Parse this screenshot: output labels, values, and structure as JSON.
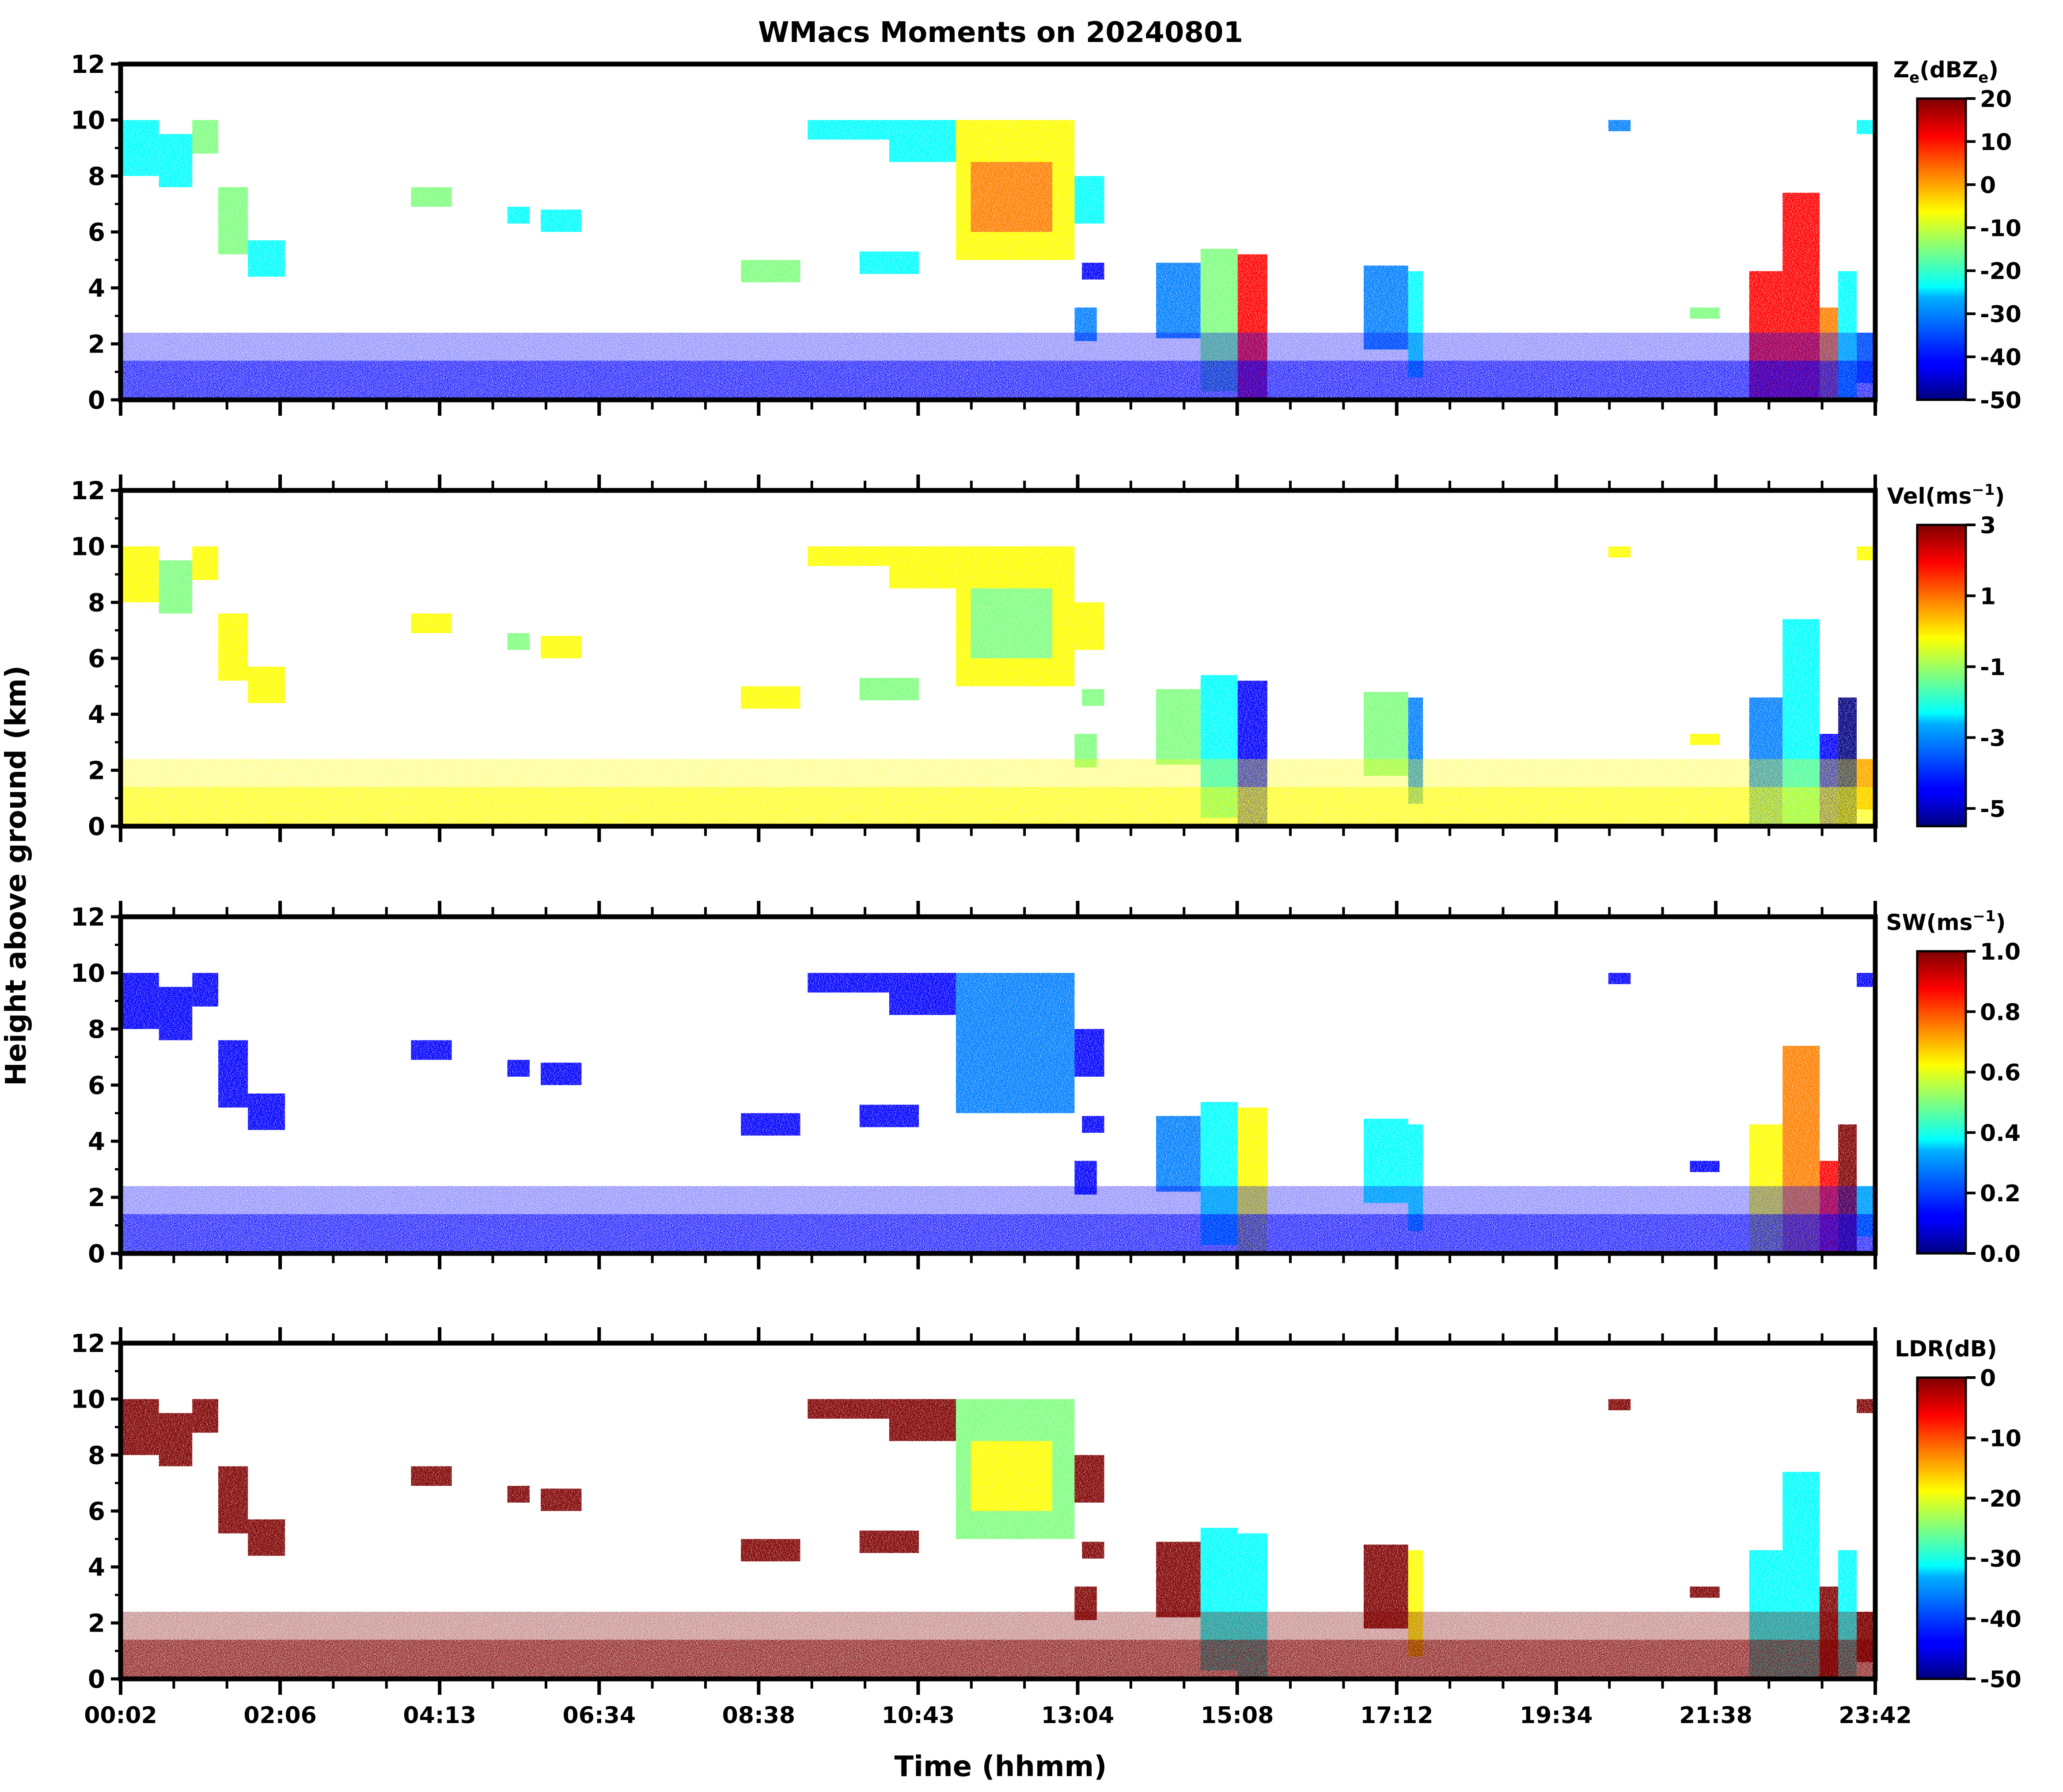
{
  "figure": {
    "title": "WMacs Moments on 20240801",
    "ylabel": "Height above ground (km)",
    "xlabel": "Time (hhmm)"
  },
  "chart_data": [
    {
      "type": "heatmap",
      "title": "WMacs Moments on 20240801",
      "variable": "Ze",
      "cbar_label_base": "Z",
      "cbar_label_sub": "e",
      "cbar_label_mid": "(dBZ",
      "cbar_label_sub2": "e",
      "cbar_label_end": ")",
      "cbar_range": [
        -50,
        20
      ],
      "cbar_ticks": [
        20,
        10,
        0,
        -10,
        -20,
        -30,
        -40,
        -50
      ],
      "cbar_tick_labels": [
        "20",
        "10",
        "0",
        "-10",
        "-20",
        "-30",
        "-40",
        "-50"
      ],
      "ylim": [
        0,
        12
      ],
      "yticks": [
        "0",
        "2",
        "4",
        "6",
        "8",
        "10",
        "12"
      ],
      "xlabel": "",
      "ylabel": "Height above ground (km)"
    },
    {
      "type": "heatmap",
      "variable": "Vel",
      "cbar_label_base": "Vel(ms",
      "cbar_label_sup": "−1",
      "cbar_label_end": ")",
      "cbar_range": [
        -5.5,
        3
      ],
      "cbar_ticks": [
        3,
        1,
        -1,
        -3,
        -5
      ],
      "cbar_tick_labels": [
        "3",
        "1",
        "-1",
        "-3",
        "-5"
      ],
      "ylim": [
        0,
        12
      ],
      "yticks": [
        "0",
        "2",
        "4",
        "6",
        "8",
        "10",
        "12"
      ]
    },
    {
      "type": "heatmap",
      "variable": "SW",
      "cbar_label_base": "SW(ms",
      "cbar_label_sup": "−1",
      "cbar_label_end": ")",
      "cbar_range": [
        0,
        1
      ],
      "cbar_ticks": [
        1.0,
        0.8,
        0.6,
        0.4,
        0.2,
        0.0
      ],
      "cbar_tick_labels": [
        "1.0",
        "0.8",
        "0.6",
        "0.4",
        "0.2",
        "0.0"
      ],
      "ylim": [
        0,
        12
      ],
      "yticks": [
        "0",
        "2",
        "4",
        "6",
        "8",
        "10",
        "12"
      ]
    },
    {
      "type": "heatmap",
      "variable": "LDR",
      "cbar_label_base": "LDR(dB)",
      "cbar_range": [
        -50,
        0
      ],
      "cbar_ticks": [
        0,
        -10,
        -20,
        -30,
        -40,
        -50
      ],
      "cbar_tick_labels": [
        "0",
        "-10",
        "-20",
        "-30",
        "-40",
        "-50"
      ],
      "ylim": [
        0,
        12
      ],
      "yticks": [
        "0",
        "2",
        "4",
        "6",
        "8",
        "10",
        "12"
      ],
      "xlabel": "Time (hhmm)",
      "xticks": [
        "00:02",
        "02:06",
        "04:13",
        "06:34",
        "08:38",
        "10:43",
        "13:04",
        "15:08",
        "17:12",
        "19:34",
        "21:38",
        "23:42"
      ],
      "xlim_hours": [
        0.033,
        23.7
      ]
    }
  ],
  "colors": {
    "jet": [
      "#00007f",
      "#0000ff",
      "#007fff",
      "#00ffff",
      "#7fff7f",
      "#ffff00",
      "#ff7f00",
      "#ff0000",
      "#7f0000"
    ]
  }
}
